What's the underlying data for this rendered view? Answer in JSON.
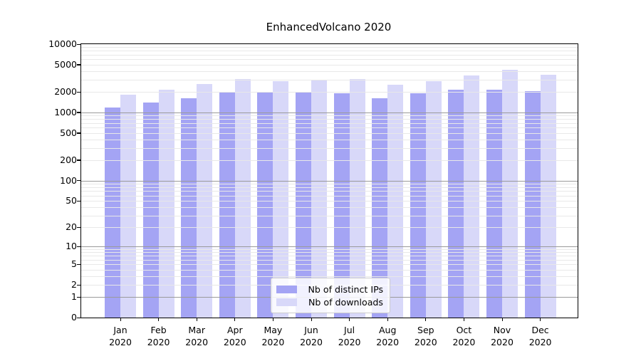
{
  "chart_data": {
    "type": "bar",
    "title": "EnhancedVolcano 2020",
    "scale": "log10(value+1)",
    "ylim": [
      0,
      10000
    ],
    "y_ticks": [
      0,
      1,
      2,
      5,
      10,
      20,
      50,
      100,
      200,
      500,
      1000,
      2000,
      5000,
      10000
    ],
    "grid": "horizontal; minor light lines at 2-9 per decade, darker lines at powers of 10, drawn over bars",
    "categories": [
      "Jan",
      "Feb",
      "Mar",
      "Apr",
      "May",
      "Jun",
      "Jul",
      "Aug",
      "Sep",
      "Oct",
      "Nov",
      "Dec"
    ],
    "x_year": "2020",
    "series": [
      {
        "name": "Nb of distinct IPs",
        "color": "#a4a4f4",
        "values": [
          1190,
          1400,
          1630,
          2000,
          1965,
          1965,
          1890,
          1630,
          1890,
          2130,
          2160,
          2040
        ]
      },
      {
        "name": "Nb of downloads",
        "color": "#d8d8f9",
        "values": [
          1815,
          2130,
          2640,
          3100,
          2860,
          2975,
          3050,
          2540,
          2860,
          3490,
          4260,
          3600
        ]
      }
    ],
    "legend_position": "bottom-center"
  }
}
